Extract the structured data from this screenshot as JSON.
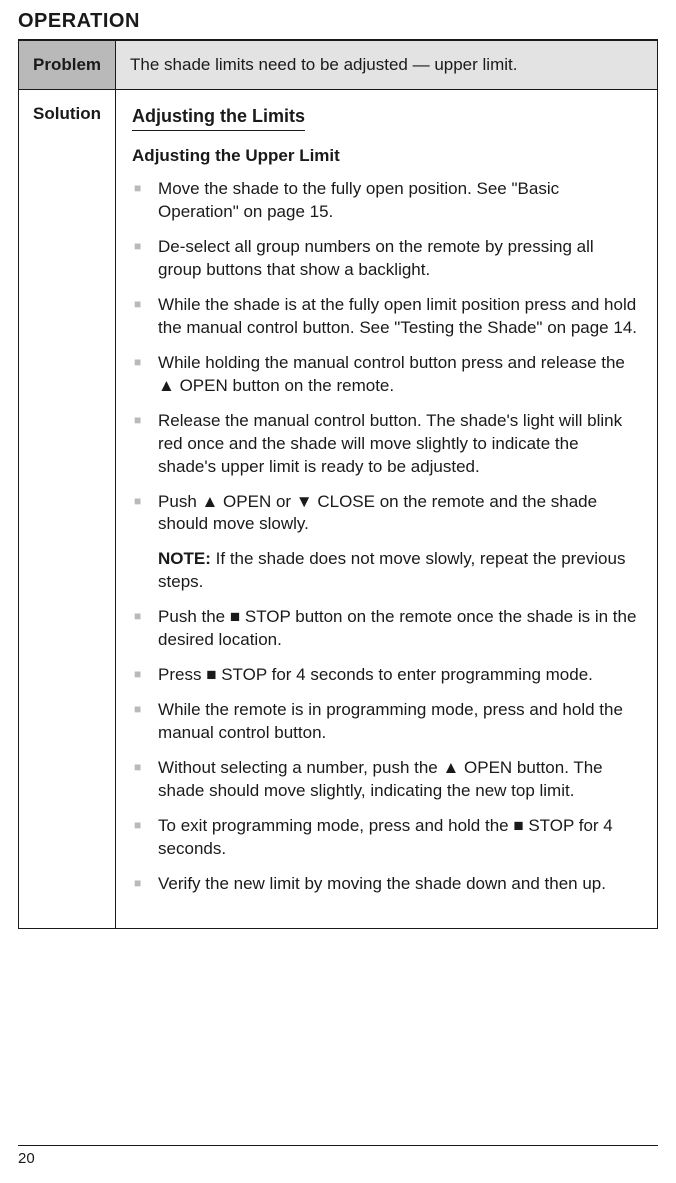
{
  "section_title": "OPERATION",
  "table": {
    "problem_label": "Problem",
    "problem_text": "The shade limits need to be adjusted — upper limit.",
    "solution_label": "Solution",
    "solution_heading": "Adjusting the Limits",
    "subheading": "Adjusting the Upper Limit",
    "steps": [
      "Move the shade to the fully open position. See \"Basic Operation\" on page 15.",
      "De-select all group numbers on the remote by pressing all group buttons that show a backlight.",
      "While the shade is at the fully open limit position press and hold the manual control button. See \"Testing the Shade\" on page 14.",
      "While holding the manual control button press and release the ▲ OPEN button on the remote.",
      "Release the manual control button. The shade's light will blink red once and the shade will move slightly to indicate the shade's upper limit is ready to be adjusted.",
      "Push ▲ OPEN or ▼ CLOSE on the remote and the shade should move slowly."
    ],
    "note_label": "NOTE:",
    "note_text": "If the shade does not move slowly, repeat the previous steps.",
    "steps2": [
      "Push the ■ STOP button on the remote once the shade is in the desired location.",
      "Press ■ STOP for 4 seconds to enter programming mode.",
      "While the remote is in programming mode, press and hold the manual control button.",
      "Without selecting a number, push the ▲ OPEN button. The shade should move slightly, indicating the new top limit.",
      "To exit programming mode, press and hold the ■ STOP for 4 seconds.",
      "Verify the new limit by moving the shade down and then up."
    ]
  },
  "page_number": "20"
}
